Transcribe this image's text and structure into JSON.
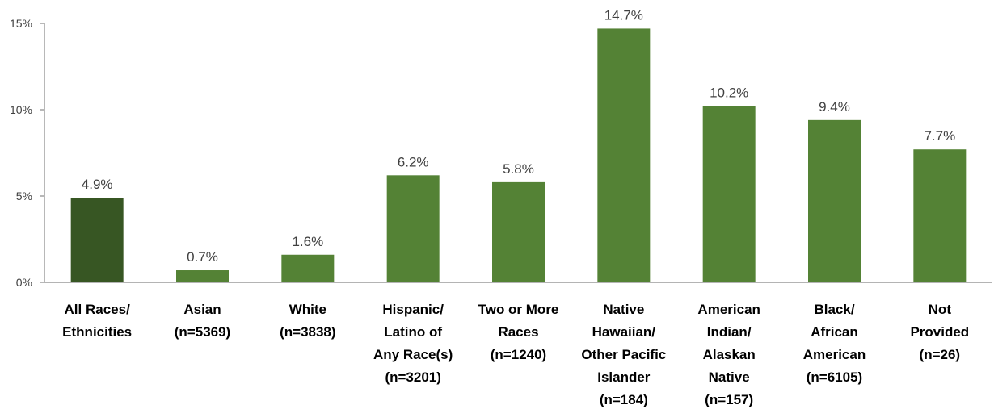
{
  "chart_data": {
    "type": "bar",
    "title": "",
    "xlabel": "",
    "ylabel": "",
    "ylim": [
      0,
      15
    ],
    "yticks": [
      0,
      5,
      10,
      15
    ],
    "ytick_labels": [
      "0%",
      "5%",
      "10%",
      "15%"
    ],
    "grid": false,
    "legend": "none",
    "categories": [
      [
        "All Races/",
        "Ethnicities"
      ],
      [
        "Asian",
        "(n=5369)"
      ],
      [
        "White",
        "(n=3838)"
      ],
      [
        "Hispanic/",
        "Latino of",
        "Any Race(s)",
        "(n=3201)"
      ],
      [
        "Two or More",
        "Races",
        "(n=1240)"
      ],
      [
        "Native",
        "Hawaiian/",
        "Other Pacific",
        "Islander",
        "(n=184)"
      ],
      [
        "American",
        "Indian/",
        "Alaskan",
        "Native",
        "(n=157)"
      ],
      [
        "Black/",
        "African",
        "American",
        "(n=6105)"
      ],
      [
        "Not",
        "Provided",
        "(n=26)"
      ]
    ],
    "values": [
      4.9,
      0.7,
      1.6,
      6.2,
      5.8,
      14.7,
      10.2,
      9.4,
      7.7
    ],
    "value_labels": [
      "4.9%",
      "0.7%",
      "1.6%",
      "6.2%",
      "5.8%",
      "14.7%",
      "10.2%",
      "9.4%",
      "7.7%"
    ],
    "colors": {
      "highlight_bar": "#375623",
      "bar": "#548235"
    },
    "highlight_index": 0
  }
}
